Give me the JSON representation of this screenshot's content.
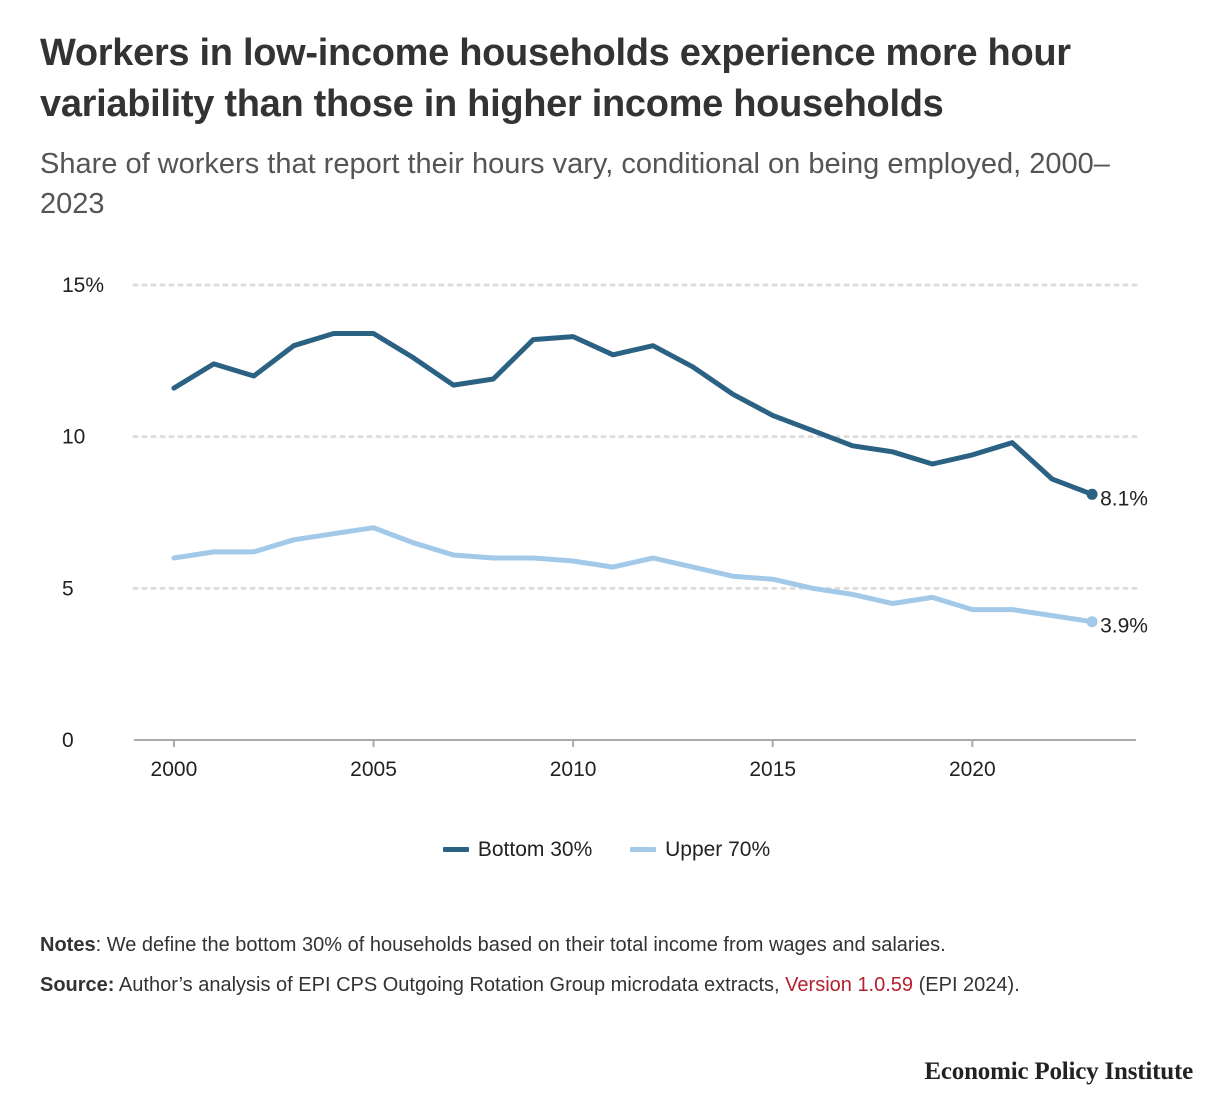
{
  "header": {
    "title": "Workers in low-income households experience more hour variability than those in higher income households",
    "subtitle": "Share of workers that report their hours vary, conditional on being employed, 2000–2023"
  },
  "chart_data": {
    "type": "line",
    "title": "Workers in low-income households experience more hour variability than those in higher income households",
    "subtitle": "Share of workers that report their hours vary, conditional on being employed, 2000–2023",
    "xlabel": "",
    "ylabel": "",
    "x": [
      2000,
      2001,
      2002,
      2003,
      2004,
      2005,
      2006,
      2007,
      2008,
      2009,
      2010,
      2011,
      2012,
      2013,
      2014,
      2015,
      2016,
      2017,
      2018,
      2019,
      2020,
      2021,
      2022,
      2023
    ],
    "xlim": [
      1999,
      2024.1
    ],
    "ylim": [
      0,
      15
    ],
    "grid": true,
    "x_ticks": [
      {
        "value": 2000,
        "label": "2000"
      },
      {
        "value": 2005,
        "label": "2005"
      },
      {
        "value": 2010,
        "label": "2010"
      },
      {
        "value": 2015,
        "label": "2015"
      },
      {
        "value": 2020,
        "label": "2020"
      }
    ],
    "y_ticks": [
      {
        "value": 0,
        "label": "0"
      },
      {
        "value": 5,
        "label": "5"
      },
      {
        "value": 10,
        "label": "10"
      },
      {
        "value": 15,
        "label": "15%"
      }
    ],
    "series": [
      {
        "name": "Bottom 30%",
        "color": "#2b6283",
        "values": [
          11.6,
          12.4,
          12.0,
          13.0,
          13.4,
          13.4,
          12.6,
          11.7,
          11.9,
          13.2,
          13.3,
          12.7,
          13.0,
          12.3,
          11.4,
          10.7,
          10.2,
          9.7,
          9.5,
          9.1,
          9.4,
          9.8,
          8.6,
          8.1
        ],
        "end_label": "8.1%"
      },
      {
        "name": "Upper 70%",
        "color": "#a3c9e9",
        "values": [
          6.0,
          6.2,
          6.2,
          6.6,
          6.8,
          7.0,
          6.5,
          6.1,
          6.0,
          6.0,
          5.9,
          5.7,
          6.0,
          5.7,
          5.4,
          5.3,
          5.0,
          4.8,
          4.5,
          4.7,
          4.3,
          4.3,
          4.1,
          3.9
        ],
        "end_label": "3.9%"
      }
    ],
    "legend": "bottom-center",
    "gridline_color": "#dddddd",
    "axis_color": "#aaaaaa"
  },
  "legend": {
    "items": [
      {
        "label": "Bottom 30%",
        "color": "#2b6283"
      },
      {
        "label": "Upper 70%",
        "color": "#a3c9e9"
      }
    ]
  },
  "notes": {
    "notes_label": "Notes",
    "notes_text": ": We define the bottom 30% of households based on their total income from wages and salaries.",
    "source_label": "Source:",
    "source_text": " Author’s analysis of EPI CPS Outgoing Rotation Group microdata extracts, ",
    "source_link": "Version 1.0.59",
    "source_tail": " (EPI 2024)."
  },
  "brand": {
    "name": "Economic Policy Institute"
  }
}
